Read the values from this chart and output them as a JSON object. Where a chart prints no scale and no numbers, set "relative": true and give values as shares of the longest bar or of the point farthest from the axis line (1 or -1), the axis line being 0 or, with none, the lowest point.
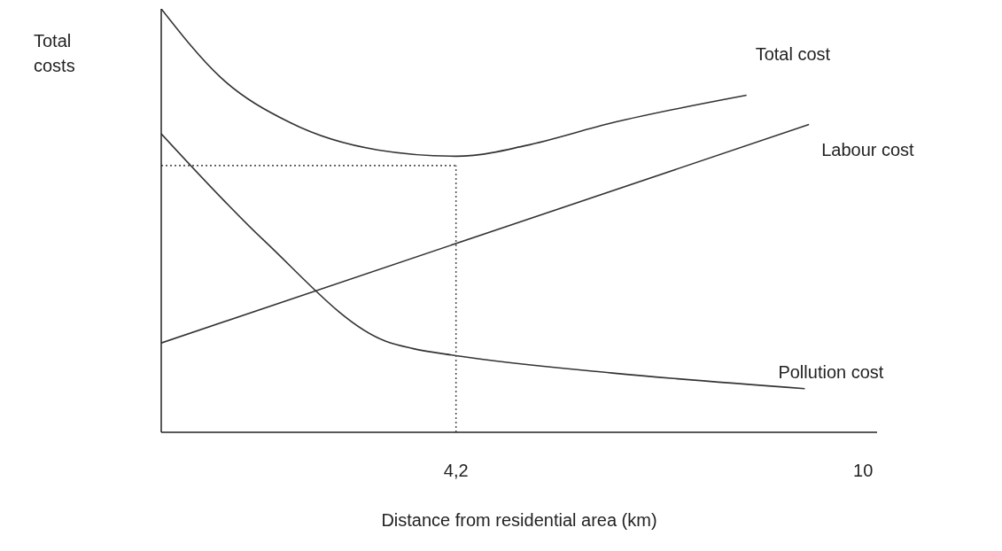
{
  "chart_data": {
    "type": "line",
    "relative": true,
    "xlabel": "Distance from residential area (km)",
    "ylabel": "Total costs",
    "xlim": [
      0,
      10.2
    ],
    "xticks": [
      {
        "value": 4.2,
        "label": "4,2"
      },
      10
    ],
    "series": [
      {
        "name": "Total cost",
        "color": "#333333",
        "x": [
          0,
          0.84,
          1.84,
          3.08,
          4.2,
          4.45,
          5.19,
          6.43,
          8.34
        ],
        "values": [
          1,
          0.839,
          0.731,
          0.667,
          0.652,
          0.654,
          0.677,
          0.731,
          0.796
        ]
      },
      {
        "name": "Labour cost",
        "color": "#333333",
        "x": [
          0,
          9.23
        ],
        "values": [
          0.211,
          0.727
        ]
      },
      {
        "name": "Pollution cost",
        "color": "#333333",
        "x": [
          0,
          1.47,
          3.2,
          3.58,
          4.2,
          6.43,
          9.17
        ],
        "values": [
          0.705,
          0.452,
          0.215,
          0.198,
          0.181,
          0.14,
          0.103
        ]
      },
      {
        "color": "#555555",
        "line_style": "dotted",
        "x": [
          0,
          4.2
        ],
        "values": [
          0.63,
          0.63
        ]
      },
      {
        "color": "#555555",
        "line_style": "dotted",
        "x": [
          4.2,
          4.2
        ],
        "values": [
          0,
          0.63
        ]
      }
    ]
  }
}
